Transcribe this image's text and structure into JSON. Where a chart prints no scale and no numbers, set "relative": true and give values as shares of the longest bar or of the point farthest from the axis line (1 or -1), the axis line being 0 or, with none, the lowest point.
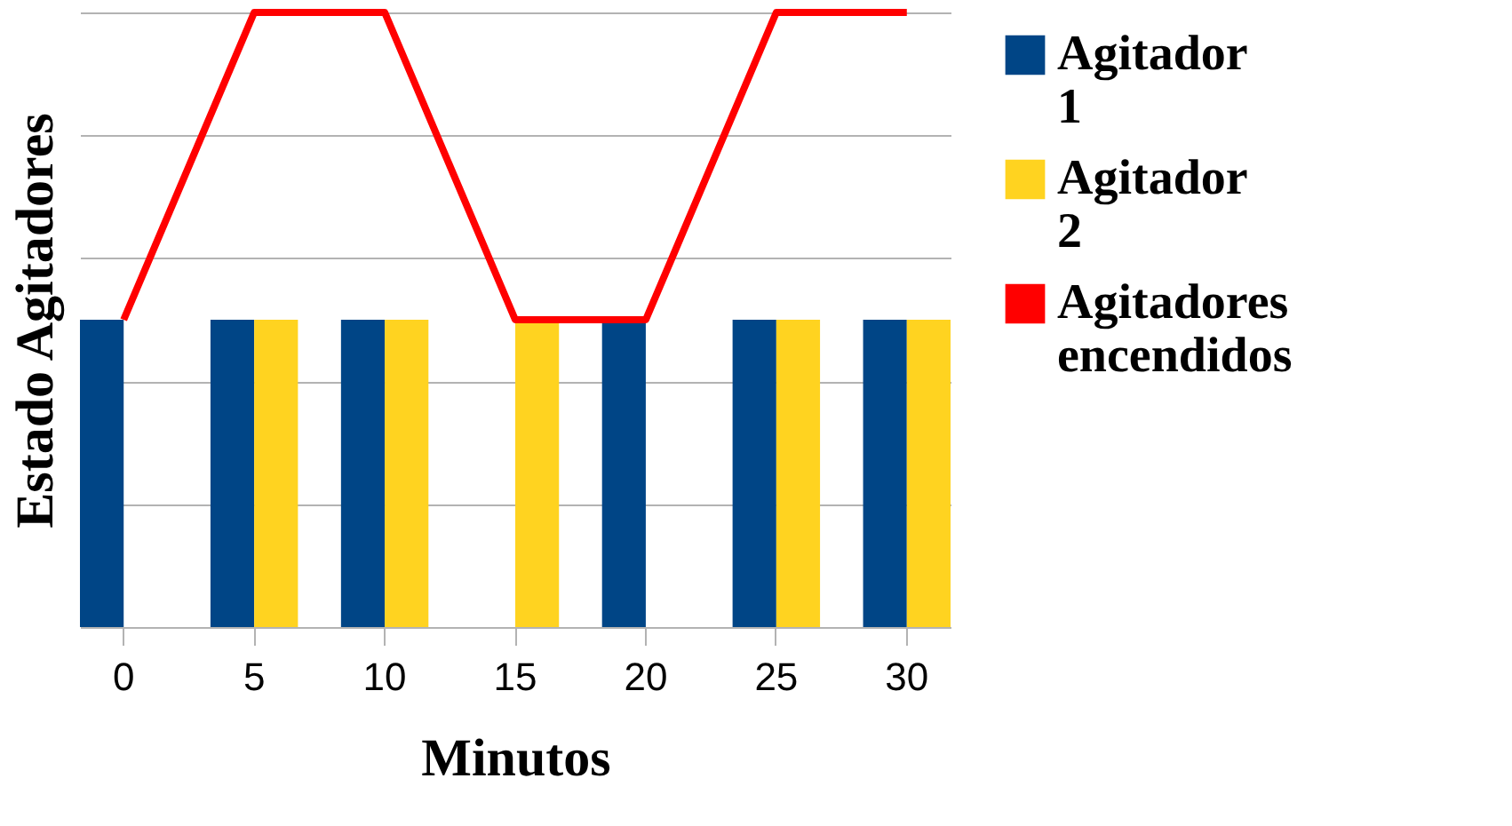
{
  "chart_data": {
    "type": "bar",
    "xlabel": "Minutos",
    "ylabel": "Estado Agitadores",
    "relative": true,
    "grid": "y",
    "legend": "right",
    "categories": [
      "0",
      "5",
      "10",
      "15",
      "20",
      "25",
      "30"
    ],
    "series": [
      {
        "name": "Agitador 1",
        "color": "#004586",
        "values": [
          0.5,
          0.5,
          0.5,
          0,
          0.5,
          0.5,
          0.5
        ]
      },
      {
        "name": "Agitador 2",
        "color": "#ffd320",
        "values": [
          0,
          0.5,
          0.5,
          0.5,
          0,
          0.5,
          0.5
        ]
      },
      {
        "name": "Agitadores encendidos",
        "type": "line",
        "color": "#ff0000",
        "values": [
          0.5,
          1,
          1,
          0.5,
          0.5,
          1,
          1
        ]
      }
    ]
  }
}
